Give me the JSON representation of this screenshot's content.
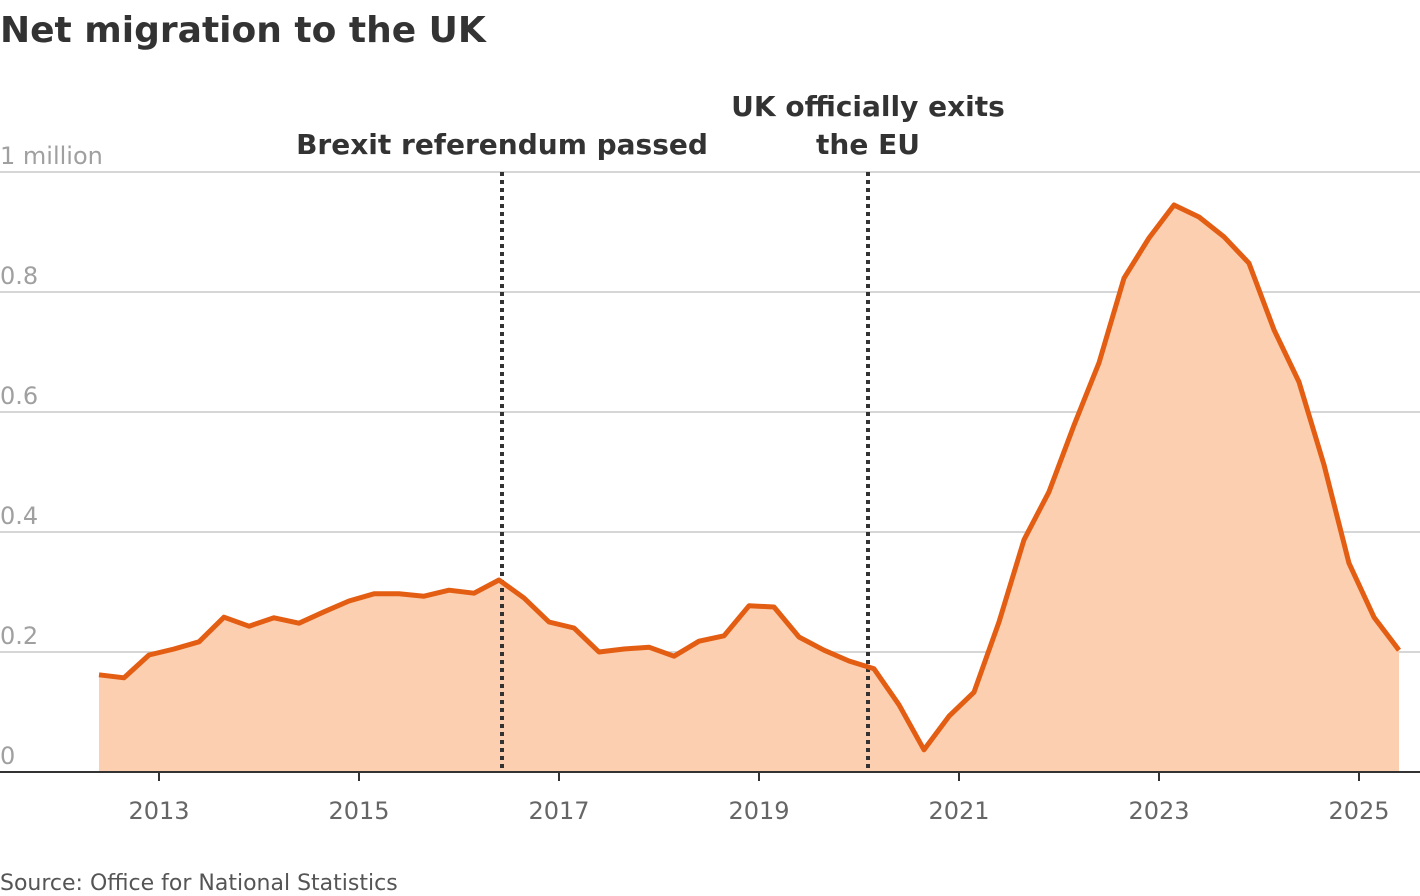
{
  "chart_data": {
    "type": "area",
    "title": "Net migration to the UK",
    "source": "Source: Office for National Statistics",
    "x": [
      2012.4,
      2012.65,
      2012.9,
      2013.15,
      2013.4,
      2013.65,
      2013.9,
      2014.15,
      2014.4,
      2014.65,
      2014.9,
      2015.15,
      2015.4,
      2015.65,
      2015.9,
      2016.15,
      2016.4,
      2016.65,
      2016.9,
      2017.15,
      2017.4,
      2017.65,
      2017.9,
      2018.15,
      2018.4,
      2018.65,
      2018.9,
      2019.15,
      2019.4,
      2019.65,
      2019.9,
      2020.15,
      2020.4,
      2020.65,
      2020.9,
      2021.15,
      2021.4,
      2021.65,
      2021.9,
      2022.15,
      2022.4,
      2022.65,
      2022.9,
      2023.15,
      2023.4,
      2023.65,
      2023.9,
      2024.15,
      2024.4,
      2024.65,
      2024.9,
      2025.15,
      2025.4
    ],
    "values": [
      0.162,
      0.157,
      0.195,
      0.205,
      0.217,
      0.258,
      0.243,
      0.257,
      0.248,
      0.267,
      0.285,
      0.297,
      0.297,
      0.293,
      0.303,
      0.298,
      0.32,
      0.29,
      0.25,
      0.24,
      0.2,
      0.205,
      0.208,
      0.193,
      0.218,
      0.227,
      0.277,
      0.275,
      0.225,
      0.203,
      0.185,
      0.172,
      0.112,
      0.037,
      0.093,
      0.133,
      0.25,
      0.387,
      0.467,
      0.578,
      0.682,
      0.823,
      0.89,
      0.945,
      0.925,
      0.892,
      0.848,
      0.737,
      0.65,
      0.512,
      0.348,
      0.258,
      0.203
    ],
    "color": "#e35d13",
    "fill_color": "#fbcfb0",
    "xlim": [
      2011.41,
      2025.61
    ],
    "xticks": [
      2013,
      2015,
      2017,
      2019,
      2021,
      2023,
      2025
    ],
    "ylim": [
      0,
      1
    ],
    "yticks": [
      0,
      0.2,
      0.4,
      0.6,
      0.8,
      {
        "value": 1,
        "label": "1 million"
      }
    ],
    "grid": true,
    "annotations": [
      {
        "x": 2016.43,
        "label": [
          "Brexit referendum passed"
        ]
      },
      {
        "x": 2020.09,
        "label": [
          "UK officially exits",
          "the EU"
        ]
      }
    ]
  }
}
